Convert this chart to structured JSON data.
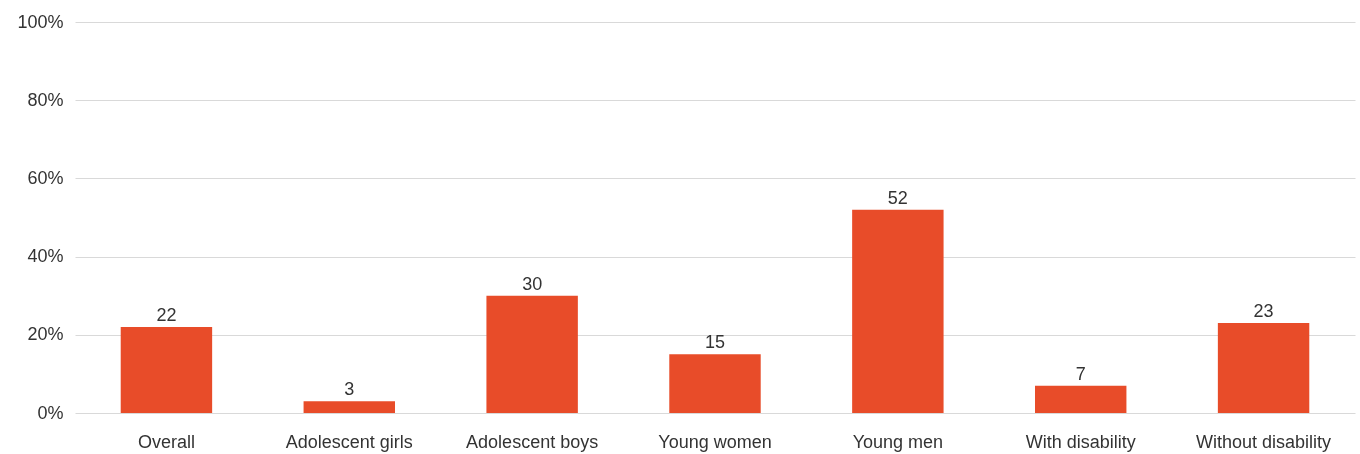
{
  "chart_data": {
    "type": "bar",
    "categories": [
      "Overall",
      "Adolescent girls",
      "Adolescent boys",
      "Young women",
      "Young men",
      "With disability",
      "Without disability"
    ],
    "values": [
      22,
      3,
      30,
      15,
      52,
      7,
      23
    ],
    "color": "#e84c29",
    "ylim": [
      0,
      100
    ],
    "yticks": [
      {
        "value": 0,
        "label": "0%"
      },
      {
        "value": 20,
        "label": "20%"
      },
      {
        "value": 40,
        "label": "40%"
      },
      {
        "value": 60,
        "label": "60%"
      },
      {
        "value": 80,
        "label": "80%"
      },
      {
        "value": 100,
        "label": "100%"
      }
    ],
    "grid": true,
    "data_labels": true
  }
}
